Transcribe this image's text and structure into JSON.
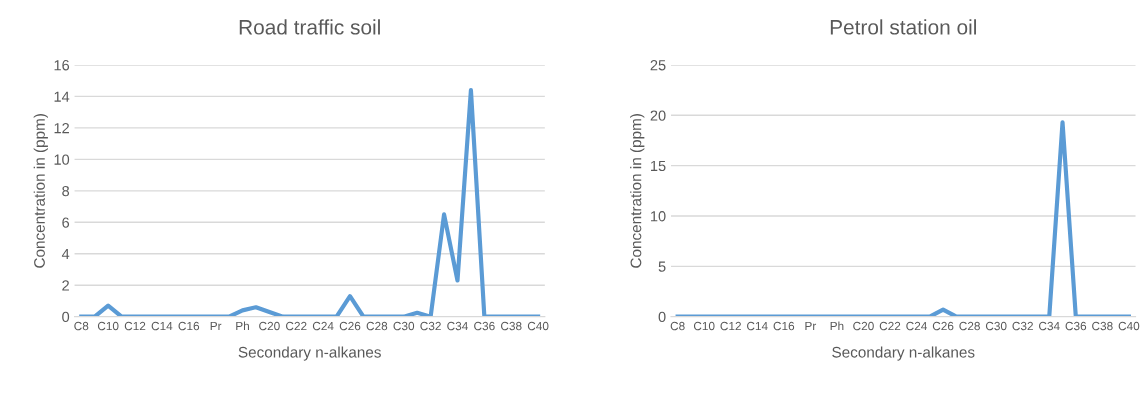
{
  "chart_data": [
    {
      "type": "line",
      "title": "Road traffic soil",
      "xlabel": "Secondary n-alkanes",
      "ylabel": "Concentration in (ppm)",
      "categories": [
        "C8",
        null,
        "C10",
        null,
        "C12",
        null,
        "C14",
        null,
        "C16",
        null,
        "Pr",
        null,
        "Ph",
        null,
        "C20",
        null,
        "C22",
        null,
        "C24",
        null,
        "C26",
        null,
        "C28",
        null,
        "C30",
        null,
        "C32",
        null,
        "C34",
        null,
        "C36",
        null,
        "C38",
        null,
        "C40"
      ],
      "series": [
        {
          "color": "#5b9bd5",
          "values": [
            0,
            0,
            0.7,
            0,
            0,
            0,
            0,
            0,
            0,
            0,
            0,
            0,
            0.4,
            0.6,
            0.3,
            0,
            0,
            0,
            0,
            0,
            1.3,
            0,
            0,
            0,
            0,
            0.25,
            0,
            6.5,
            2.3,
            14.4,
            0,
            0,
            0,
            0,
            0
          ]
        }
      ],
      "ylim": [
        0,
        16
      ],
      "yticks": [
        0,
        2,
        4,
        6,
        8,
        10,
        12,
        14,
        16
      ],
      "grid": "y",
      "legend": false
    },
    {
      "type": "line",
      "title": "Petrol station oil",
      "xlabel": "Secondary n-alkanes",
      "ylabel": "Concentration in (ppm)",
      "categories": [
        "C8",
        null,
        "C10",
        null,
        "C12",
        null,
        "C14",
        null,
        "C16",
        null,
        "Pr",
        null,
        "Ph",
        null,
        "C20",
        null,
        "C22",
        null,
        "C24",
        null,
        "C26",
        null,
        "C28",
        null,
        "C30",
        null,
        "C32",
        null,
        "C34",
        null,
        "C36",
        null,
        "C38",
        null,
        "C40"
      ],
      "series": [
        {
          "color": "#5b9bd5",
          "values": [
            0,
            0,
            0,
            0,
            0,
            0,
            0,
            0,
            0,
            0,
            0,
            0,
            0,
            0,
            0,
            0,
            0,
            0,
            0,
            0,
            0.7,
            0,
            0,
            0,
            0,
            0,
            0,
            0,
            0,
            19.3,
            0,
            0,
            0,
            0,
            0
          ]
        }
      ],
      "ylim": [
        0,
        25
      ],
      "yticks": [
        0,
        5,
        10,
        15,
        20,
        25
      ],
      "grid": "y",
      "legend": false
    }
  ]
}
